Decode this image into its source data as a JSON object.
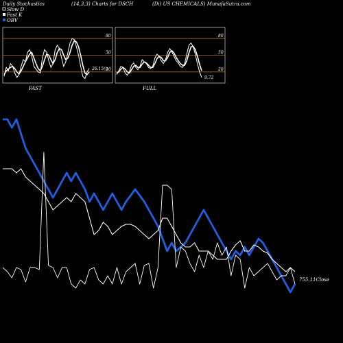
{
  "header": {
    "left": "Daily Stochastics",
    "params": "(14,3,3) Charts for DSCH",
    "company": "(Di) US CHEMICALS) MunafaSutra.com"
  },
  "legend": {
    "items": [
      {
        "label": "Slow D",
        "color": "#ffffff",
        "marker": "hollow"
      },
      {
        "label": "Fast K",
        "color": "#ffffff",
        "marker": "filled"
      },
      {
        "label": "OBV",
        "color": "#1f5fe0",
        "marker": "filled"
      }
    ]
  },
  "colors": {
    "background": "#000000",
    "grid_line": "#b06a1a",
    "obv": "#1f5fe0",
    "price": "#ffffff",
    "panel_border": "#ffffff"
  },
  "chart_data": [
    {
      "type": "line",
      "panel": "fast",
      "caption": "FAST",
      "last_value_label": "26.15(n",
      "ylim": [
        0,
        100
      ],
      "yticks": [
        20,
        50,
        80
      ],
      "series": [
        {
          "name": "Fast K",
          "values": [
            12,
            28,
            22,
            35,
            30,
            18,
            10,
            15,
            30,
            42,
            38,
            55,
            60,
            48,
            30,
            25,
            20,
            18,
            45,
            60,
            55,
            40,
            28,
            35,
            60,
            68,
            62,
            45,
            30,
            38,
            55,
            72,
            80,
            78,
            65,
            50,
            30,
            12,
            8,
            20,
            26
          ]
        },
        {
          "name": "Slow D",
          "values": [
            15,
            22,
            25,
            28,
            30,
            26,
            20,
            16,
            22,
            30,
            38,
            45,
            52,
            55,
            45,
            35,
            26,
            22,
            30,
            42,
            52,
            50,
            42,
            35,
            42,
            55,
            62,
            60,
            50,
            42,
            45,
            55,
            68,
            76,
            74,
            65,
            50,
            32,
            18,
            15,
            20
          ]
        }
      ]
    },
    {
      "type": "line",
      "panel": "full",
      "caption": "FULL",
      "last_value_label": "9.72",
      "ylim": [
        0,
        100
      ],
      "yticks": [
        20,
        50,
        80
      ],
      "series": [
        {
          "name": "Fast K",
          "values": [
            15,
            22,
            30,
            28,
            18,
            14,
            20,
            32,
            36,
            28,
            24,
            30,
            42,
            38,
            35,
            28,
            26,
            30,
            45,
            52,
            48,
            40,
            35,
            42,
            55,
            62,
            56,
            48,
            40,
            36,
            30,
            28,
            35,
            52,
            68,
            72,
            65,
            52,
            35,
            20,
            10
          ]
        },
        {
          "name": "Slow D",
          "values": [
            18,
            20,
            25,
            28,
            25,
            20,
            18,
            24,
            30,
            32,
            28,
            28,
            34,
            38,
            36,
            32,
            28,
            28,
            35,
            44,
            48,
            46,
            40,
            40,
            46,
            55,
            58,
            54,
            46,
            40,
            35,
            32,
            32,
            40,
            54,
            65,
            66,
            60,
            48,
            34,
            22
          ]
        }
      ]
    },
    {
      "type": "line",
      "panel": "main",
      "last_value_label": "755.11Close",
      "ylim": [
        0,
        100
      ],
      "series": [
        {
          "name": "OBV",
          "values": [
            92,
            92,
            88,
            92,
            85,
            78,
            74,
            70,
            66,
            62,
            58,
            54,
            58,
            62,
            66,
            62,
            66,
            62,
            58,
            52,
            56,
            52,
            48,
            52,
            56,
            52,
            48,
            52,
            55,
            58,
            55,
            52,
            48,
            44,
            40,
            34,
            28,
            32,
            28,
            30,
            32,
            36,
            40,
            44,
            48,
            44,
            40,
            36,
            32,
            28,
            24,
            28,
            26,
            30,
            26,
            30,
            34,
            32,
            28,
            24,
            20,
            16,
            12,
            8,
            12
          ]
        },
        {
          "name": "Price",
          "values": [
            68,
            68,
            68,
            66,
            68,
            64,
            62,
            60,
            58,
            56,
            52,
            48,
            50,
            52,
            54,
            52,
            56,
            54,
            52,
            44,
            36,
            38,
            42,
            40,
            36,
            38,
            40,
            41,
            41,
            40,
            38,
            36,
            34,
            36,
            38,
            44,
            44,
            40,
            36,
            32,
            30,
            30,
            32,
            28,
            28,
            28,
            26,
            24,
            24,
            24,
            28,
            31,
            33,
            28,
            28,
            31,
            30,
            28,
            27,
            24,
            22,
            20,
            18,
            20,
            18
          ]
        },
        {
          "name": "Fast K",
          "values": [
            20,
            18,
            15,
            20,
            19,
            13,
            20,
            20,
            19,
            76,
            21,
            20,
            15,
            20,
            20,
            12,
            10,
            14,
            12,
            19,
            20,
            14,
            12,
            16,
            12,
            20,
            12,
            18,
            20,
            22,
            12,
            21,
            22,
            10,
            20,
            60,
            60,
            58,
            20,
            30,
            28,
            22,
            18,
            26,
            20,
            28,
            24,
            32,
            26,
            30,
            16,
            26,
            24,
            10,
            20,
            16,
            18,
            20,
            22,
            18,
            14,
            16,
            16,
            20,
            12
          ]
        }
      ]
    }
  ]
}
